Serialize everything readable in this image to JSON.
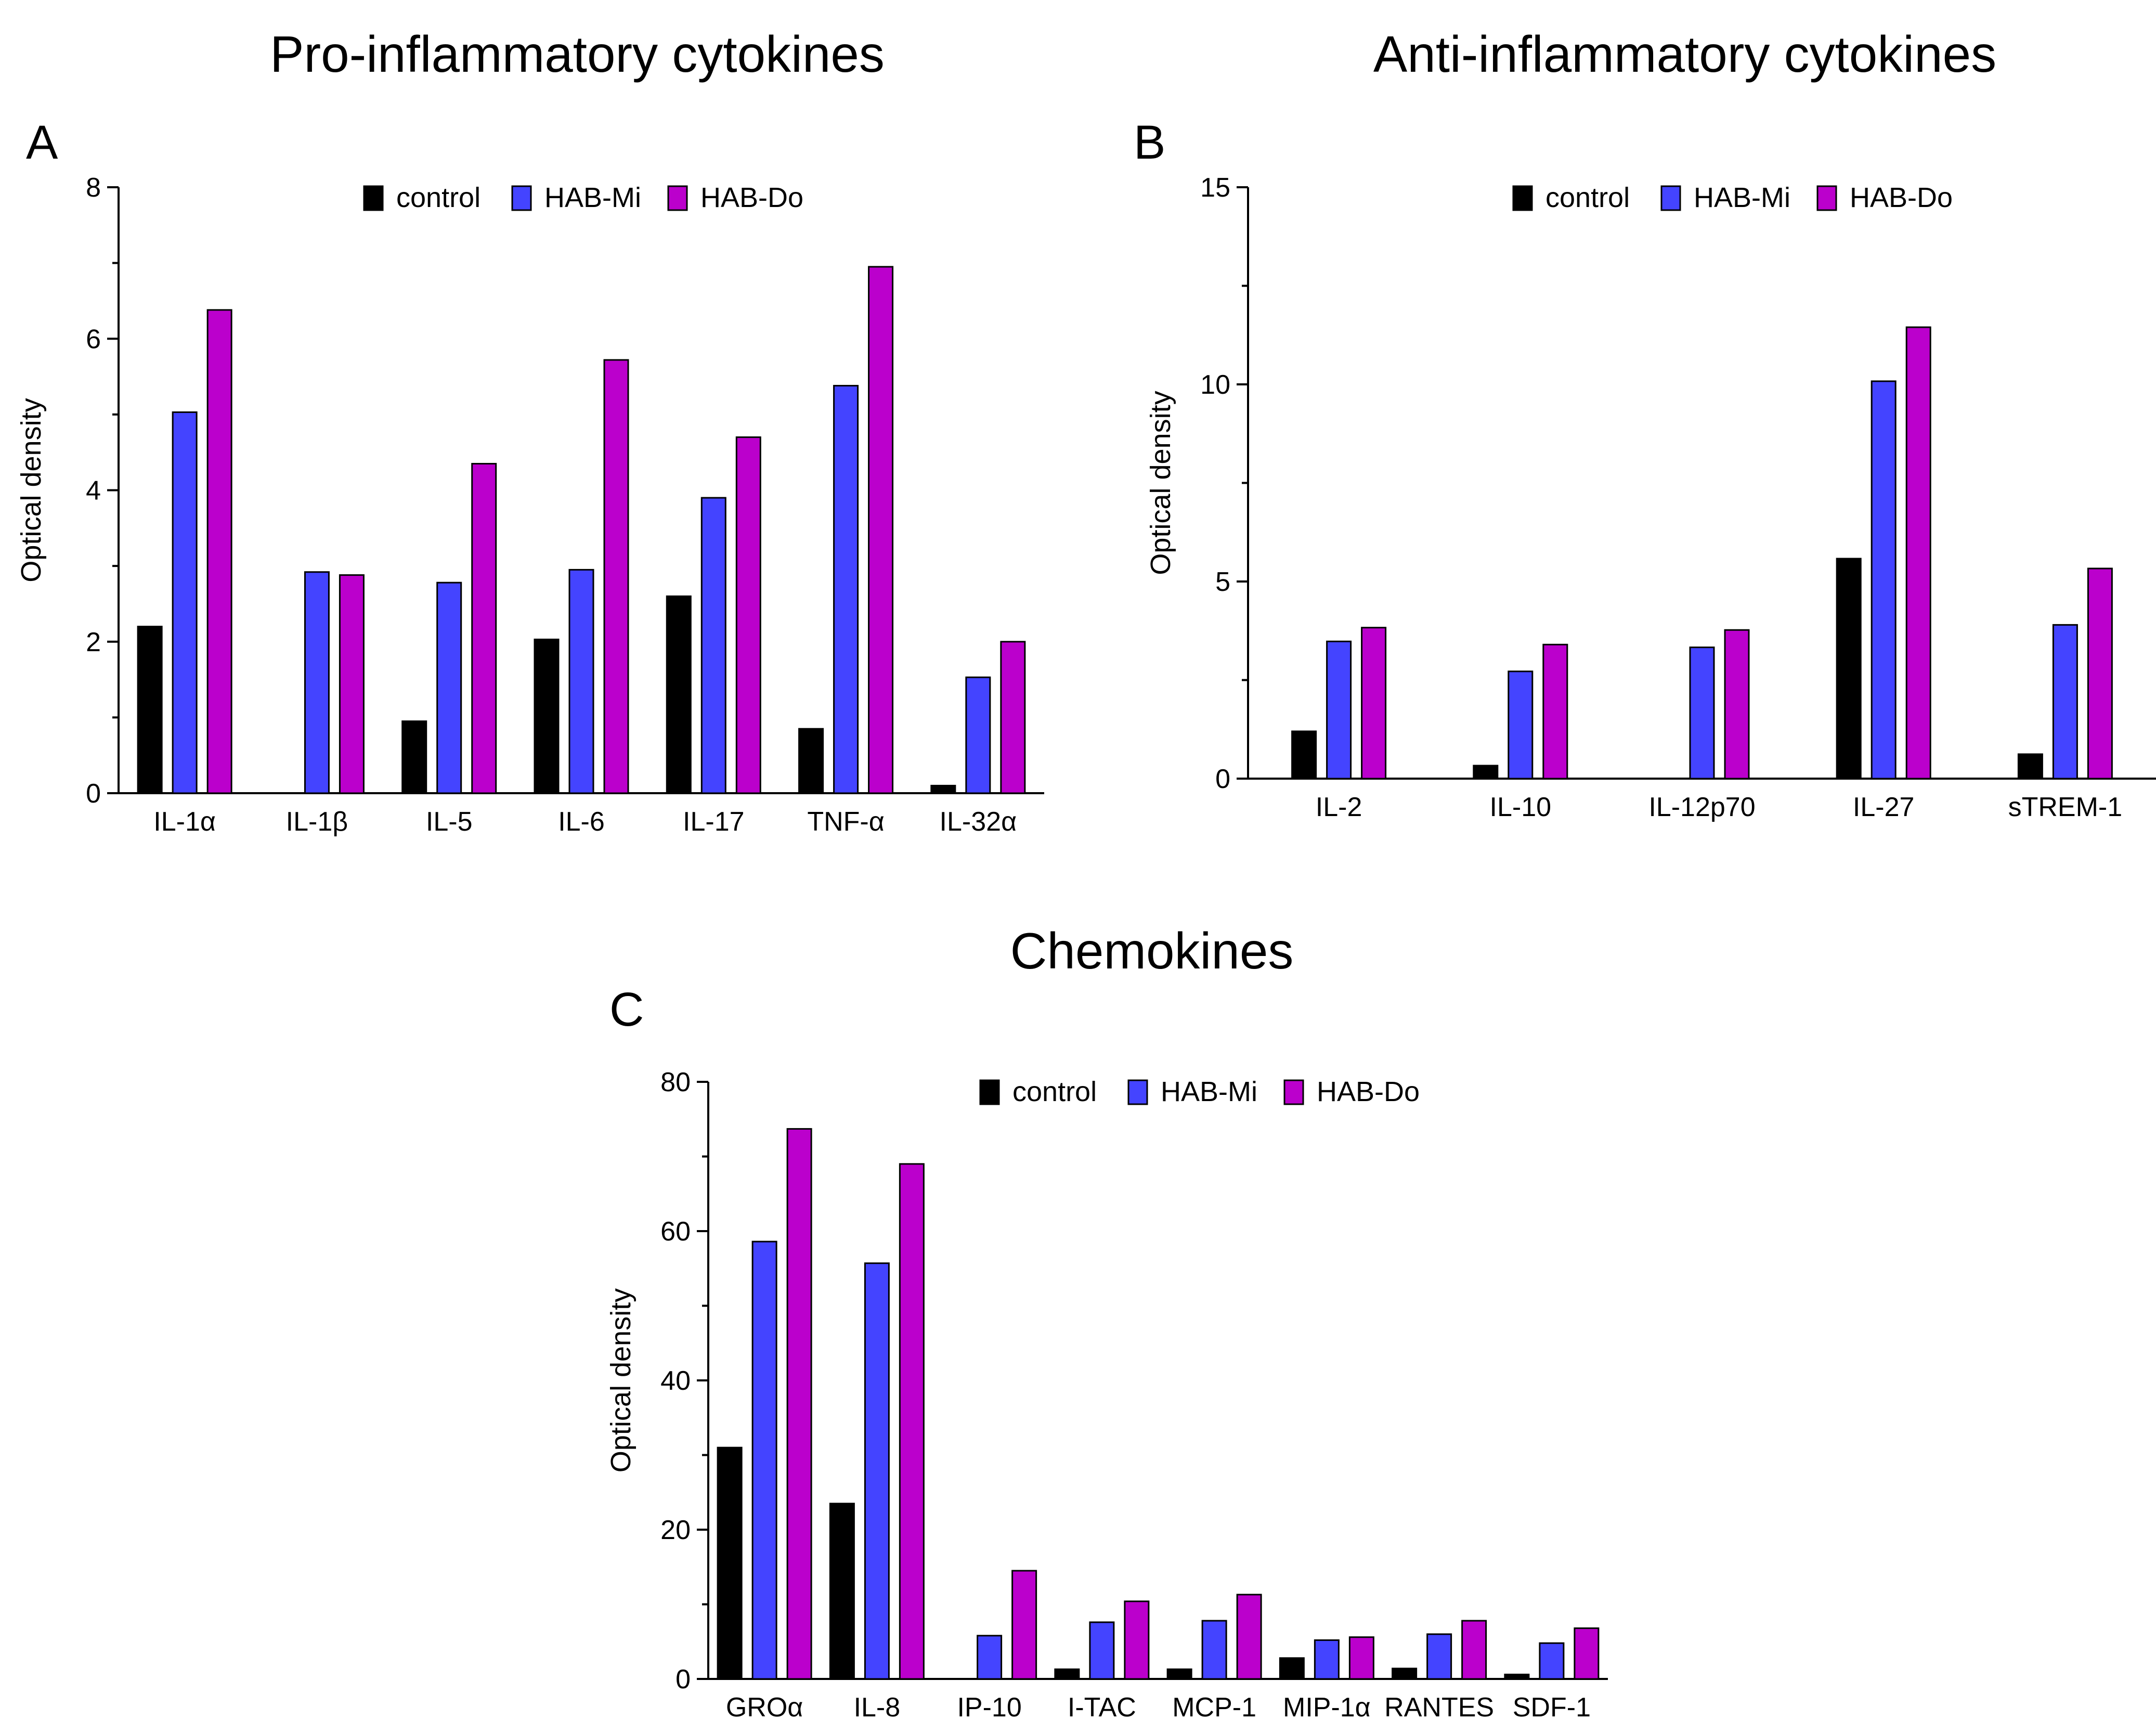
{
  "colors": {
    "control": "#000000",
    "HAB-Mi": "#4444ff",
    "HAB-Do": "#bb00cc"
  },
  "chart_data": [
    {
      "panel": "A",
      "type": "bar",
      "title": "Pro-inflammatory cytokines",
      "xlabel": "",
      "ylabel": "Optical density",
      "ylim": [
        0,
        8
      ],
      "yticks": [
        0,
        2,
        4,
        6,
        8
      ],
      "legend_position": "top",
      "categories": [
        "IL-1α",
        "IL-1β",
        "IL-5",
        "IL-6",
        "IL-17",
        "TNF-α",
        "IL-32α"
      ],
      "series": [
        {
          "name": "control",
          "values": [
            2.2,
            0,
            0.95,
            2.03,
            2.6,
            0.85,
            0.1
          ]
        },
        {
          "name": "HAB-Mi",
          "values": [
            5.03,
            2.92,
            2.78,
            2.95,
            3.9,
            5.38,
            1.53
          ]
        },
        {
          "name": "HAB-Do",
          "values": [
            6.38,
            2.88,
            4.35,
            5.72,
            4.7,
            6.95,
            2.0
          ]
        }
      ]
    },
    {
      "panel": "B",
      "type": "bar",
      "title": "Anti-inflammatory cytokines",
      "xlabel": "",
      "ylabel": "Optical density",
      "ylim": [
        0,
        15
      ],
      "yticks": [
        0,
        5,
        10,
        15
      ],
      "legend_position": "top",
      "categories": [
        "IL-2",
        "IL-10",
        "IL-12p70",
        "IL-27",
        "sTREM-1"
      ],
      "series": [
        {
          "name": "control",
          "values": [
            1.2,
            0.33,
            0,
            5.58,
            0.62
          ]
        },
        {
          "name": "HAB-Mi",
          "values": [
            3.48,
            2.72,
            3.33,
            10.08,
            3.9
          ]
        },
        {
          "name": "HAB-Do",
          "values": [
            3.83,
            3.4,
            3.77,
            11.45,
            5.33
          ]
        }
      ]
    },
    {
      "panel": "C",
      "type": "bar",
      "title": "Chemokines",
      "xlabel": "",
      "ylabel": "Optical density",
      "ylim": [
        0,
        80
      ],
      "yticks": [
        0,
        20,
        40,
        60,
        80
      ],
      "legend_position": "top",
      "categories": [
        "GROα",
        "IL-8",
        "IP-10",
        "I-TAC",
        "MCP-1",
        "MIP-1α",
        "RANTES",
        "SDF-1"
      ],
      "series": [
        {
          "name": "control",
          "values": [
            31,
            23.5,
            0,
            1.3,
            1.3,
            2.8,
            1.4,
            0.6
          ]
        },
        {
          "name": "HAB-Mi",
          "values": [
            58.6,
            55.7,
            5.8,
            7.6,
            7.8,
            5.2,
            6.0,
            4.8
          ]
        },
        {
          "name": "HAB-Do",
          "values": [
            73.7,
            69.0,
            14.5,
            10.4,
            11.3,
            5.6,
            7.8,
            6.8
          ]
        }
      ]
    }
  ]
}
